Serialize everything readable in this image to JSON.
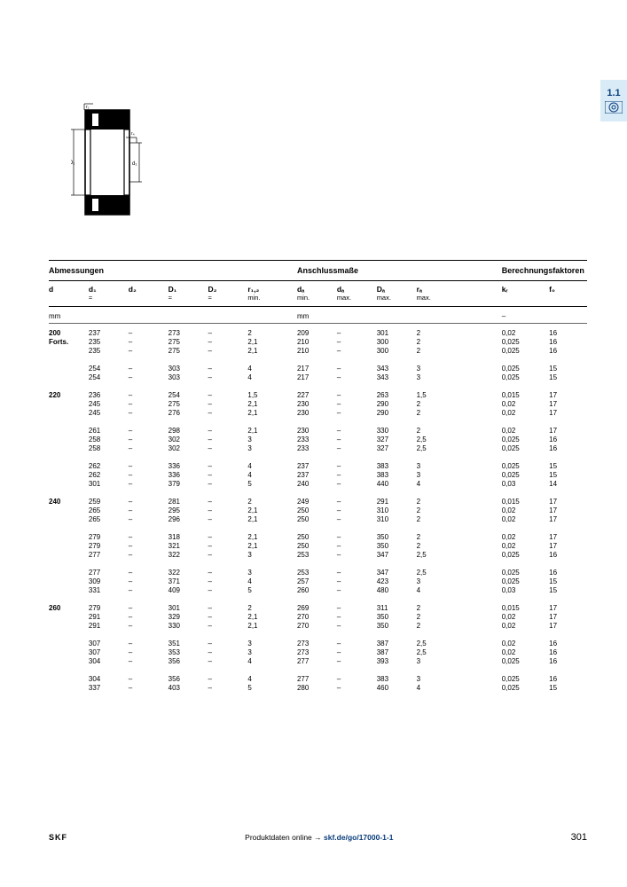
{
  "sideTab": {
    "label": "1.1"
  },
  "sections": {
    "s1": "Abmessungen",
    "s2": "Anschlussmaße",
    "s3": "Berechnungsfaktoren"
  },
  "headers": {
    "h0": "d",
    "h1": "d₁",
    "h2": "d₂",
    "h3": "D₁",
    "h4": "D₂",
    "h5": "r₁,₂",
    "h6": "dₐ",
    "h7": "dₐ",
    "h8": "Dₐ",
    "h9": "rₐ",
    "h10": "kᵣ",
    "h11": "f₀"
  },
  "subs": {
    "s1": "≈",
    "s3": "≈",
    "s4": "≈",
    "s5": "min.",
    "s6": "min.",
    "s7": "max.",
    "s8": "max.",
    "s9": "max."
  },
  "units": {
    "u0": "mm",
    "u6": "mm",
    "u10": "–"
  },
  "rows": [
    [
      "200",
      "237",
      "–",
      "273",
      "–",
      "2",
      "209",
      "–",
      "301",
      "2",
      "0,02",
      "16"
    ],
    [
      "Forts.",
      "235",
      "–",
      "275",
      "–",
      "2,1",
      "210",
      "–",
      "300",
      "2",
      "0,025",
      "16"
    ],
    [
      "",
      "235",
      "–",
      "275",
      "–",
      "2,1",
      "210",
      "–",
      "300",
      "2",
      "0,025",
      "16"
    ],
    [],
    [
      "",
      "254",
      "–",
      "303",
      "–",
      "4",
      "217",
      "–",
      "343",
      "3",
      "0,025",
      "15"
    ],
    [
      "",
      "254",
      "–",
      "303",
      "–",
      "4",
      "217",
      "–",
      "343",
      "3",
      "0,025",
      "15"
    ],
    [],
    [
      "220",
      "236",
      "–",
      "254",
      "–",
      "1,5",
      "227",
      "–",
      "263",
      "1,5",
      "0,015",
      "17"
    ],
    [
      "",
      "245",
      "–",
      "275",
      "–",
      "2,1",
      "230",
      "–",
      "290",
      "2",
      "0,02",
      "17"
    ],
    [
      "",
      "245",
      "–",
      "276",
      "–",
      "2,1",
      "230",
      "–",
      "290",
      "2",
      "0,02",
      "17"
    ],
    [],
    [
      "",
      "261",
      "–",
      "298",
      "–",
      "2,1",
      "230",
      "–",
      "330",
      "2",
      "0,02",
      "17"
    ],
    [
      "",
      "258",
      "–",
      "302",
      "–",
      "3",
      "233",
      "–",
      "327",
      "2,5",
      "0,025",
      "16"
    ],
    [
      "",
      "258",
      "–",
      "302",
      "–",
      "3",
      "233",
      "–",
      "327",
      "2,5",
      "0,025",
      "16"
    ],
    [],
    [
      "",
      "262",
      "–",
      "336",
      "–",
      "4",
      "237",
      "–",
      "383",
      "3",
      "0,025",
      "15"
    ],
    [
      "",
      "262",
      "–",
      "336",
      "–",
      "4",
      "237",
      "–",
      "383",
      "3",
      "0,025",
      "15"
    ],
    [
      "",
      "301",
      "–",
      "379",
      "–",
      "5",
      "240",
      "–",
      "440",
      "4",
      "0,03",
      "14"
    ],
    [],
    [
      "240",
      "259",
      "–",
      "281",
      "–",
      "2",
      "249",
      "–",
      "291",
      "2",
      "0,015",
      "17"
    ],
    [
      "",
      "265",
      "–",
      "295",
      "–",
      "2,1",
      "250",
      "–",
      "310",
      "2",
      "0,02",
      "17"
    ],
    [
      "",
      "265",
      "–",
      "296",
      "–",
      "2,1",
      "250",
      "–",
      "310",
      "2",
      "0,02",
      "17"
    ],
    [],
    [
      "",
      "279",
      "–",
      "318",
      "–",
      "2,1",
      "250",
      "–",
      "350",
      "2",
      "0,02",
      "17"
    ],
    [
      "",
      "279",
      "–",
      "321",
      "–",
      "2,1",
      "250",
      "–",
      "350",
      "2",
      "0,02",
      "17"
    ],
    [
      "",
      "277",
      "–",
      "322",
      "–",
      "3",
      "253",
      "–",
      "347",
      "2,5",
      "0,025",
      "16"
    ],
    [],
    [
      "",
      "277",
      "–",
      "322",
      "–",
      "3",
      "253",
      "–",
      "347",
      "2,5",
      "0,025",
      "16"
    ],
    [
      "",
      "309",
      "–",
      "371",
      "–",
      "4",
      "257",
      "–",
      "423",
      "3",
      "0,025",
      "15"
    ],
    [
      "",
      "331",
      "–",
      "409",
      "–",
      "5",
      "260",
      "–",
      "480",
      "4",
      "0,03",
      "15"
    ],
    [],
    [
      "260",
      "279",
      "–",
      "301",
      "–",
      "2",
      "269",
      "–",
      "311",
      "2",
      "0,015",
      "17"
    ],
    [
      "",
      "291",
      "–",
      "329",
      "–",
      "2,1",
      "270",
      "–",
      "350",
      "2",
      "0,02",
      "17"
    ],
    [
      "",
      "291",
      "–",
      "330",
      "–",
      "2,1",
      "270",
      "–",
      "350",
      "2",
      "0,02",
      "17"
    ],
    [],
    [
      "",
      "307",
      "–",
      "351",
      "–",
      "3",
      "273",
      "–",
      "387",
      "2,5",
      "0,02",
      "16"
    ],
    [
      "",
      "307",
      "–",
      "353",
      "–",
      "3",
      "273",
      "–",
      "387",
      "2,5",
      "0,02",
      "16"
    ],
    [
      "",
      "304",
      "–",
      "356",
      "–",
      "4",
      "277",
      "–",
      "393",
      "3",
      "0,025",
      "16"
    ],
    [],
    [
      "",
      "304",
      "–",
      "356",
      "–",
      "4",
      "277",
      "–",
      "383",
      "3",
      "0,025",
      "16"
    ],
    [
      "",
      "337",
      "–",
      "403",
      "–",
      "5",
      "280",
      "–",
      "460",
      "4",
      "0,025",
      "15"
    ]
  ],
  "footer": {
    "brand": "SKF",
    "midText": "Produktdaten online → ",
    "link": "skf.de/go/17000-1-1",
    "page": "301"
  },
  "colors": {
    "accent": "#0a3d7a",
    "tabBg": "#d9ebf7"
  }
}
